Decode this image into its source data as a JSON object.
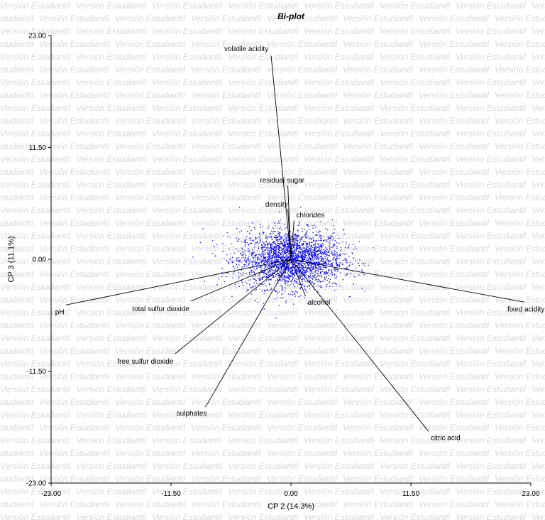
{
  "watermark_text": "Versión Estudiantil",
  "chart_data": {
    "type": "scatter",
    "title": "Bi-plot",
    "xlabel": "CP 2 (14.3%)",
    "ylabel": "CP 3 (11.1%)",
    "xlim": [
      -23.0,
      23.0
    ],
    "ylim": [
      -23.0,
      23.0
    ],
    "xticks": [
      "-23.00",
      "-11.50",
      "0.00",
      "11.50",
      "23.00"
    ],
    "yticks": [
      "23.00",
      "11.50",
      "0.00",
      "-11.50",
      "-23.00"
    ],
    "grid": false,
    "point_color": "#0000ff",
    "vector_color": "#000000",
    "points_cloud": {
      "center": [
        0.0,
        0.0
      ],
      "spread_x": 2.5,
      "spread_y": 1.5
    },
    "vectors": [
      {
        "name": "volatile acidity",
        "x": -1.9,
        "y": 20.9,
        "label": "volatile acidity"
      },
      {
        "name": "residual sugar",
        "x": -0.3,
        "y": 7.6,
        "label": "residual sugar"
      },
      {
        "name": "density",
        "x": -0.3,
        "y": 5.2,
        "label": "density"
      },
      {
        "name": "chlorides",
        "x": 0.3,
        "y": 4.0,
        "label": "chlorides"
      },
      {
        "name": "pH",
        "x": -21.6,
        "y": -4.7,
        "label": "pH"
      },
      {
        "name": "total sulfur dioxide",
        "x": -9.6,
        "y": -4.3,
        "label": "total sulfur dioxide"
      },
      {
        "name": "free sulfur dioxide",
        "x": -11.1,
        "y": -9.7,
        "label": "free sulfur dioxide"
      },
      {
        "name": "sulphates",
        "x": -8.2,
        "y": -15.2,
        "label": "sulphates"
      },
      {
        "name": "alcohol",
        "x": 1.4,
        "y": -3.8,
        "label": "alcohol"
      },
      {
        "name": "citric acid",
        "x": 13.2,
        "y": -17.7,
        "label": "citric acid"
      },
      {
        "name": "fixed acidity",
        "x": 22.4,
        "y": -4.4,
        "label": "fixed acidity"
      }
    ]
  }
}
